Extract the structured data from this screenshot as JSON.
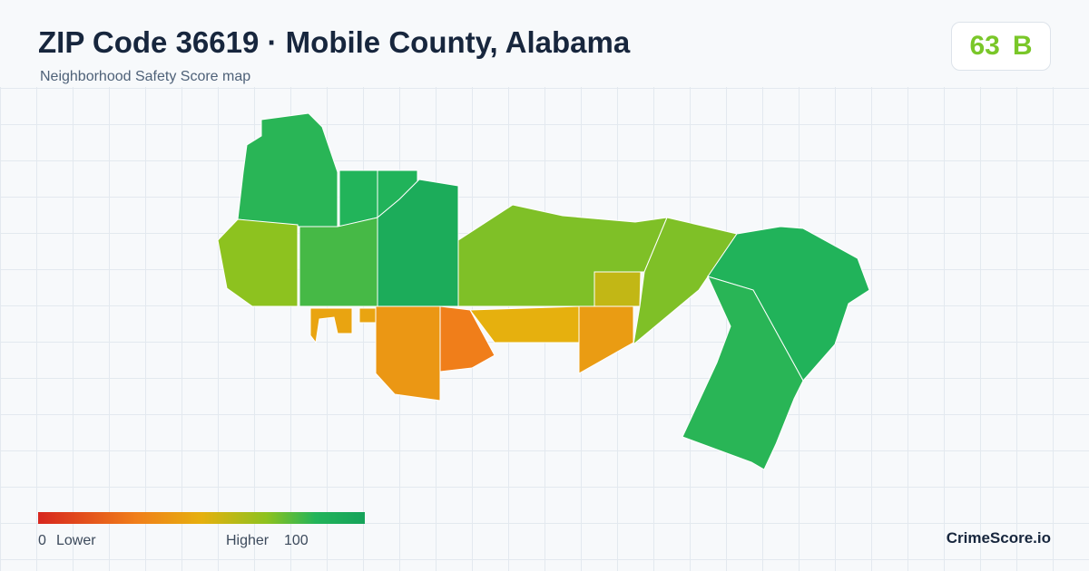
{
  "header": {
    "title": "ZIP Code 36619 · Mobile County, Alabama",
    "subtitle": "Neighborhood Safety Score map"
  },
  "score": {
    "value": 63,
    "grade": "B"
  },
  "map": {
    "region_scores": [
      84,
      85,
      86,
      92,
      70,
      80,
      72,
      58,
      72,
      86,
      84,
      45,
      45,
      40,
      30,
      50,
      42
    ]
  },
  "legend": {
    "min": 0,
    "min_label": "Lower",
    "max_label": "Higher",
    "max": 100
  },
  "footer": {
    "brand": "CrimeScore.io"
  }
}
